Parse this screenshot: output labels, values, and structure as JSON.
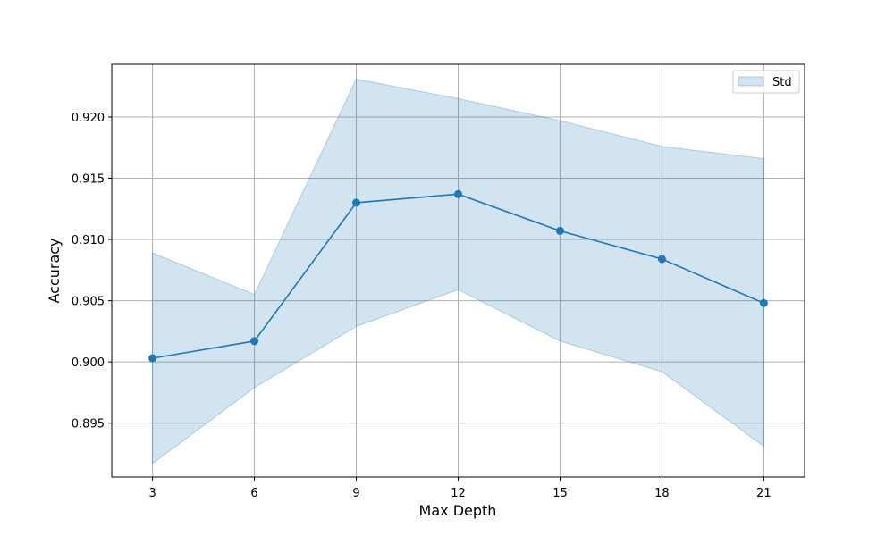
{
  "chart_data": {
    "type": "line",
    "xlabel": "Max Depth",
    "ylabel": "Accuracy",
    "x": [
      3,
      6,
      9,
      12,
      15,
      18,
      21
    ],
    "xticks": [
      "3",
      "6",
      "9",
      "12",
      "15",
      "18",
      "21"
    ],
    "yticks": [
      "0.895",
      "0.900",
      "0.905",
      "0.910",
      "0.915",
      "0.920"
    ],
    "ytick_values": [
      0.895,
      0.9,
      0.905,
      0.91,
      0.915,
      0.92
    ],
    "xlim": [
      1.8,
      22.2
    ],
    "ylim": [
      0.8906,
      0.9243
    ],
    "grid": true,
    "legend_placement": "top-right",
    "series": [
      {
        "values": [
          0.9003,
          0.9017,
          0.913,
          0.9137,
          0.9107,
          0.9084,
          0.9048
        ],
        "color": "#1f77b4",
        "marker": "circle"
      }
    ],
    "band": {
      "name": "Std",
      "lower": [
        0.8917,
        0.8979,
        0.9029,
        0.9059,
        0.9017,
        0.8992,
        0.8931
      ],
      "upper": [
        0.9089,
        0.9055,
        0.9231,
        0.9215,
        0.9197,
        0.9176,
        0.9166
      ],
      "color": "#1f77b4",
      "opacity": 0.2
    }
  }
}
